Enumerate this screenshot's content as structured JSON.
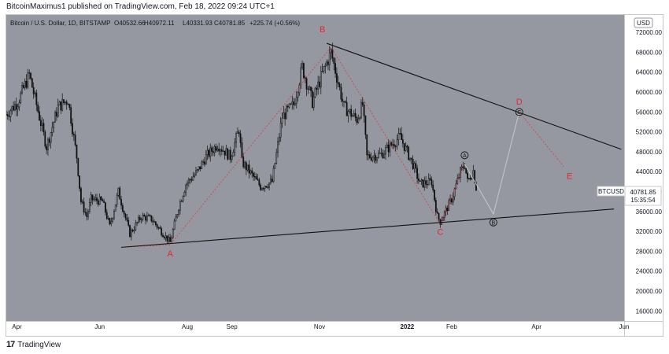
{
  "header": {
    "text": "BitcoinMaximus1 published on TradingView.com, Feb 18, 2022 09:24 UTC+1"
  },
  "footer": {
    "logo_text": "17",
    "brand": "TradingView"
  },
  "colors": {
    "plot_bg": "#9598a1",
    "candle": "#111111",
    "trendline": "#111111",
    "path_red": "#e8262b",
    "path_gray": "#c7c7c7"
  },
  "chart_data": {
    "type": "candlestick",
    "symbol_line": {
      "title": "Bitcoin / U.S. Dollar, 1D, BITSTAMP",
      "o": "40532.66",
      "h": "40972.11",
      "l": "40331.93",
      "c": "40781.85",
      "change": "+225.74 (+0.56%)"
    },
    "currency": "USD",
    "price_label": {
      "symbol": "BTCUSD",
      "price": "40781.85",
      "countdown": "15:35:54"
    },
    "ylim": [
      14000,
      75500
    ],
    "y_ticks": [
      "72000.00",
      "68000.00",
      "64000.00",
      "60000.00",
      "56000.00",
      "52000.00",
      "48000.00",
      "44000.00",
      "40000.00",
      "36000.00",
      "32000.00",
      "28000.00",
      "24000.00",
      "20000.00",
      "16000.00"
    ],
    "x_ticks": [
      {
        "label": "Apr",
        "date": "2021-04-01"
      },
      {
        "label": "Jun",
        "date": "2021-06-01"
      },
      {
        "label": "Aug",
        "date": "2021-08-01"
      },
      {
        "label": "Sep",
        "date": "2021-09-01"
      },
      {
        "label": "Nov",
        "date": "2021-11-01"
      },
      {
        "label": "2022",
        "date": "2022-01-01",
        "bold": true
      },
      {
        "label": "Feb",
        "date": "2022-02-01"
      },
      {
        "label": "Apr",
        "date": "2022-04-01"
      },
      {
        "label": "Jun",
        "date": "2022-06-01"
      }
    ],
    "xlim": [
      "2021-03-28",
      "2022-06-01"
    ],
    "price_path": [
      [
        "2021-03-28",
        55500
      ],
      [
        "2021-04-05",
        58000
      ],
      [
        "2021-04-13",
        63500
      ],
      [
        "2021-04-20",
        55000
      ],
      [
        "2021-04-25",
        49000
      ],
      [
        "2021-05-03",
        57000
      ],
      [
        "2021-05-10",
        58500
      ],
      [
        "2021-05-16",
        47000
      ],
      [
        "2021-05-19",
        38000
      ],
      [
        "2021-05-23",
        35000
      ],
      [
        "2021-05-26",
        38500
      ],
      [
        "2021-06-03",
        38000
      ],
      [
        "2021-06-08",
        33000
      ],
      [
        "2021-06-14",
        40000
      ],
      [
        "2021-06-22",
        31500
      ],
      [
        "2021-06-30",
        35000
      ],
      [
        "2021-07-07",
        34500
      ],
      [
        "2021-07-20",
        29800
      ],
      [
        "2021-07-26",
        37000
      ],
      [
        "2021-07-31",
        41500
      ],
      [
        "2021-08-08",
        44000
      ],
      [
        "2021-08-14",
        47000
      ],
      [
        "2021-08-22",
        49500
      ],
      [
        "2021-08-31",
        47000
      ],
      [
        "2021-09-06",
        52500
      ],
      [
        "2021-09-08",
        46000
      ],
      [
        "2021-09-21",
        41000
      ],
      [
        "2021-09-29",
        42000
      ],
      [
        "2021-10-06",
        55000
      ],
      [
        "2021-10-14",
        57500
      ],
      [
        "2021-10-20",
        65000
      ],
      [
        "2021-10-27",
        58000
      ],
      [
        "2021-11-02",
        63000
      ],
      [
        "2021-11-09",
        68000
      ],
      [
        "2021-11-18",
        57000
      ],
      [
        "2021-11-27",
        54500
      ],
      [
        "2021-12-01",
        57500
      ],
      [
        "2021-12-04",
        47000
      ],
      [
        "2021-12-14",
        47500
      ],
      [
        "2021-12-27",
        51000
      ],
      [
        "2022-01-05",
        45500
      ],
      [
        "2022-01-10",
        41500
      ],
      [
        "2022-01-18",
        42000
      ],
      [
        "2022-01-22",
        35000
      ],
      [
        "2022-01-24",
        34000
      ],
      [
        "2022-02-01",
        38500
      ],
      [
        "2022-02-07",
        44000
      ],
      [
        "2022-02-10",
        45500
      ],
      [
        "2022-02-12",
        42000
      ],
      [
        "2022-02-16",
        44200
      ],
      [
        "2022-02-18",
        40781.85
      ]
    ],
    "trendlines": [
      {
        "from": [
          "2021-06-16",
          28800
        ],
        "to": [
          "2022-05-25",
          36500
        ]
      },
      {
        "from": [
          "2021-11-06",
          69800
        ],
        "to": [
          "2022-05-30",
          48500
        ]
      }
    ],
    "wave_path": [
      [
        "2021-06-16",
        28800
      ],
      [
        "2021-07-20",
        29300
      ],
      [
        "2021-11-09",
        69000
      ],
      [
        "2022-01-24",
        33500
      ],
      [
        "2022-02-10",
        45500
      ],
      [
        "2022-03-02",
        35500
      ],
      [
        "2022-03-20",
        56000
      ],
      [
        "2022-04-20",
        45000
      ]
    ],
    "wave_labels": [
      {
        "text": "A",
        "date": "2021-07-20",
        "price": 27000,
        "style": "red"
      },
      {
        "text": "B",
        "date": "2021-11-03",
        "price": 72000,
        "style": "red"
      },
      {
        "text": "C",
        "date": "2022-01-24",
        "price": 31300,
        "style": "red"
      },
      {
        "text": "D",
        "date": "2022-03-20",
        "price": 57500,
        "style": "red"
      },
      {
        "text": "E",
        "date": "2022-04-24",
        "price": 42500,
        "style": "red"
      },
      {
        "text": "A",
        "date": "2022-02-10",
        "price": 47300,
        "style": "circle"
      },
      {
        "text": "B",
        "date": "2022-03-02",
        "price": 33800,
        "style": "circle"
      },
      {
        "text": "C",
        "date": "2022-03-20",
        "price": 56000,
        "style": "circle"
      }
    ]
  }
}
